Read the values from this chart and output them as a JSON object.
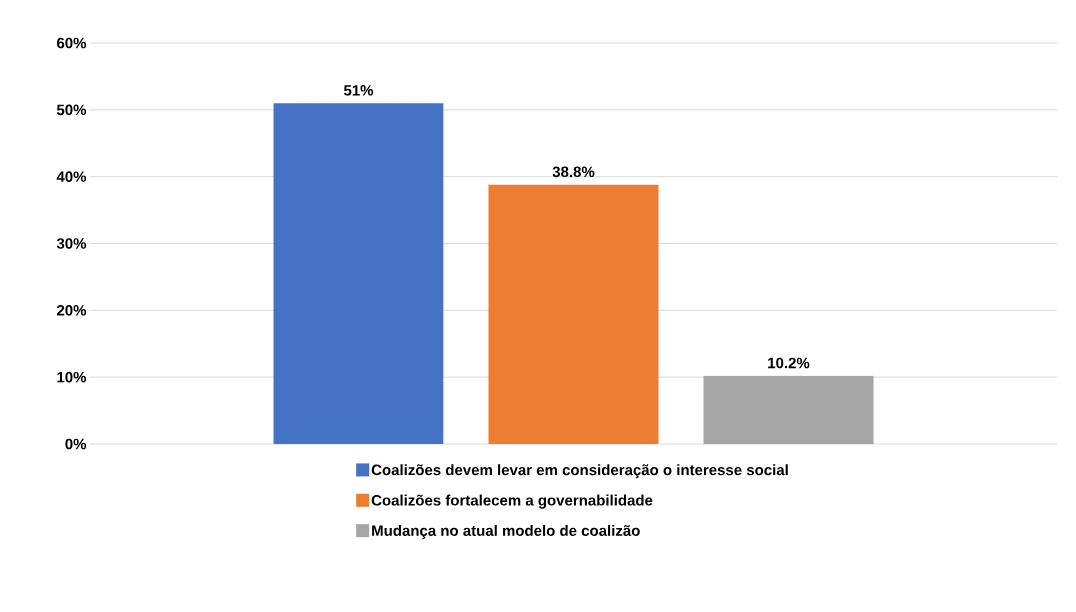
{
  "chart_data": {
    "type": "bar",
    "categories": [
      null
    ],
    "series": [
      {
        "name": "Coalizões devem levar em consideração o interesse social",
        "color": "#4472c4",
        "values": [
          51
        ],
        "value_labels": [
          "51%"
        ]
      },
      {
        "name": "Coalizões fortalecem a governabilidade",
        "color": "#ed7d31",
        "values": [
          38.8
        ],
        "value_labels": [
          "38.8%"
        ]
      },
      {
        "name": "Mudança no atual modelo de coalizão",
        "color": "#a5a5a5",
        "values": [
          10.2
        ],
        "value_labels": [
          "10.2%"
        ]
      }
    ],
    "ylim": [
      0,
      60
    ],
    "yticks": [
      {
        "value": 0,
        "label": "0%"
      },
      {
        "value": 10,
        "label": "10%"
      },
      {
        "value": 20,
        "label": "20%"
      },
      {
        "value": 30,
        "label": "30%"
      },
      {
        "value": 40,
        "label": "40%"
      },
      {
        "value": 50,
        "label": "50%"
      },
      {
        "value": 60,
        "label": "60%"
      }
    ],
    "grid": "y",
    "legend": "bottom"
  }
}
